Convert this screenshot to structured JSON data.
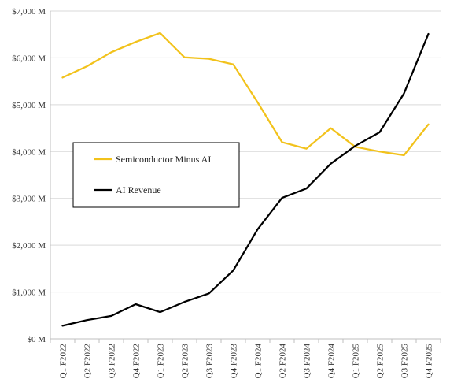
{
  "chart_data": {
    "type": "line",
    "title": "",
    "xlabel": "",
    "ylabel": "",
    "categories": [
      "Q1 F2022",
      "Q2 F2022",
      "Q3 F2022",
      "Q4 F2022",
      "Q1 F2023",
      "Q2 F2023",
      "Q3 F2023",
      "Q4 F2023",
      "Q1 F2024",
      "Q2 F2024",
      "Q3 F2024",
      "Q4 F2024",
      "Q1 F2025",
      "Q2 F2025",
      "Q3 F2025",
      "Q4 F2025"
    ],
    "ylim": [
      0,
      7000
    ],
    "yticks": [
      0,
      1000,
      2000,
      3000,
      4000,
      5000,
      6000,
      7000
    ],
    "ytick_labels": [
      "$0 M",
      "$1,000 M",
      "$2,000 M",
      "$3,000 M",
      "$4,000 M",
      "$5,000 M",
      "$6,000 M",
      "$7,000 M"
    ],
    "grid": true,
    "legend": "center-left",
    "series": [
      {
        "name": "Semiconductor Minus AI",
        "color": "#F2C21B",
        "values": [
          5580,
          5820,
          6120,
          6340,
          6530,
          6010,
          5980,
          5860,
          5050,
          4200,
          4060,
          4500,
          4100,
          4000,
          3920,
          4580
        ]
      },
      {
        "name": "AI Revenue",
        "color": "#000000",
        "values": [
          280,
          400,
          490,
          740,
          570,
          790,
          970,
          1460,
          2340,
          3010,
          3210,
          3740,
          4120,
          4410,
          5240,
          6510
        ]
      }
    ]
  }
}
